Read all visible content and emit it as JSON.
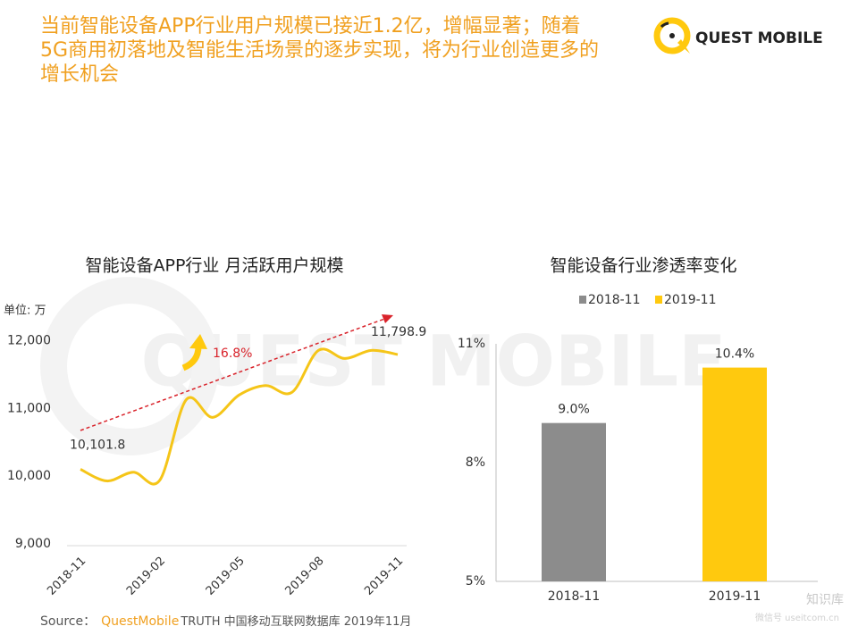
{
  "header": {
    "title": [
      "当前智能设备APP行业用户规模已接近1.2亿，增幅显著；随着",
      "5G商用初落地及智能生活场景的逐步实现，将为行业创造更多的",
      "增长机会"
    ],
    "logo": "QUEST MOBILE"
  },
  "chart_data": [
    {
      "type": "line",
      "title": "智能设备APP行业 月活跃用户规模",
      "unit": "单位: 万",
      "color": "#f5c518",
      "categories": [
        "2018-11",
        null,
        null,
        "2019-02",
        null,
        null,
        "2019-05",
        null,
        null,
        "2019-08",
        null,
        null,
        "2019-11"
      ],
      "values": [
        10101.8,
        9930,
        10060,
        9940,
        11130,
        10870,
        11200,
        11340,
        11240,
        11860,
        11740,
        11860,
        11798.9
      ],
      "value_labels": [
        "10,101.8",
        null,
        null,
        null,
        null,
        null,
        null,
        null,
        null,
        null,
        null,
        null,
        "11,798.9"
      ],
      "annotation": "16.8%",
      "ylim": [
        9000,
        12300
      ],
      "yticks": [
        {
          "value": 9000,
          "label": "9,000"
        },
        {
          "value": 10000,
          "label": "10,000"
        },
        {
          "value": 11000,
          "label": "11,000"
        },
        {
          "value": 12000,
          "label": "12,000"
        }
      ]
    },
    {
      "type": "bar",
      "title": "智能设备行业渗透率变化",
      "categories": [
        "2018-11",
        "2019-11"
      ],
      "values": [
        9.0,
        10.4
      ],
      "value_labels": [
        "9.0%",
        "10.4%"
      ],
      "colors": [
        "#8c8c8c",
        "#ffc90e"
      ],
      "legend": "top",
      "ylim": [
        5,
        11
      ],
      "yticks": [
        {
          "value": 5,
          "label": "5%"
        },
        {
          "value": 8,
          "label": "8%"
        },
        {
          "value": 11,
          "label": "11%"
        }
      ]
    }
  ],
  "source": {
    "label": "Source：",
    "brand": "QuestMobile",
    "text": "TRUTH 中国移动互联网数据库 2019年11月"
  },
  "watermark": {
    "name": "知识库",
    "id": "微信号 useitcom.cn"
  }
}
